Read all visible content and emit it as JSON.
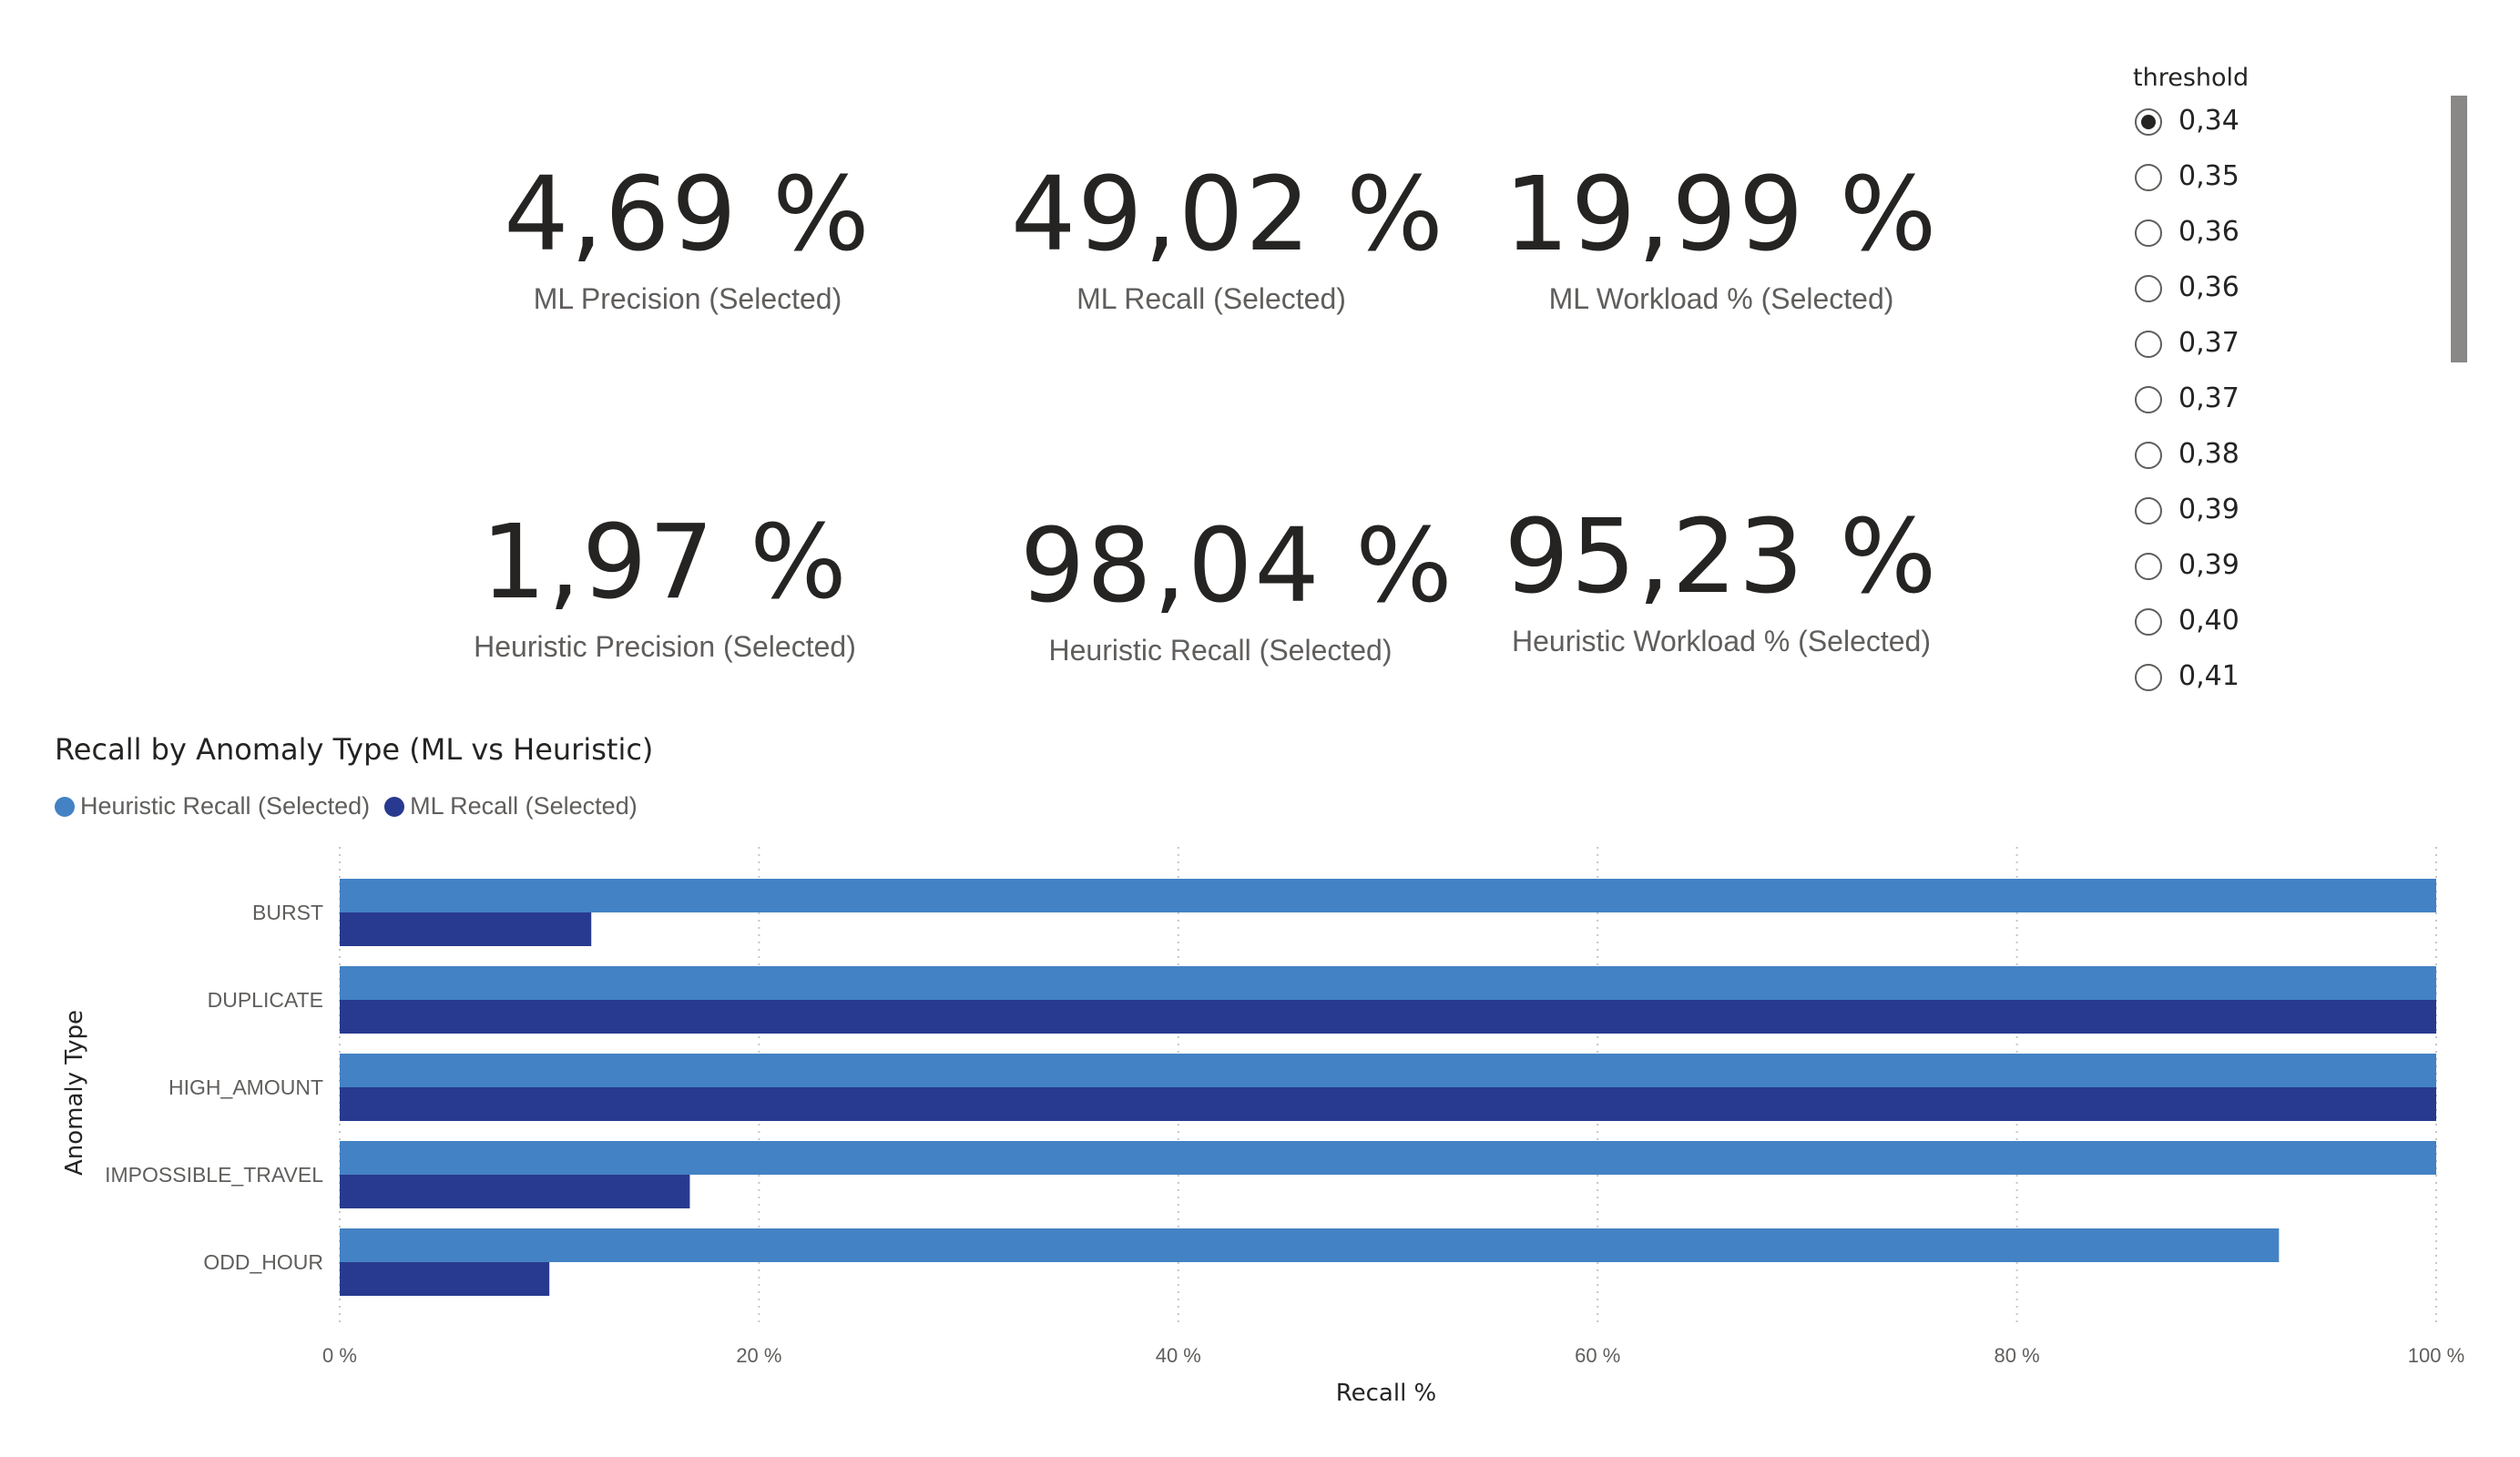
{
  "cards": [
    {
      "value": "4,69 %",
      "label": "ML Precision (Selected)"
    },
    {
      "value": "49,02 %",
      "label": "ML Recall (Selected)"
    },
    {
      "value": "19,99 %",
      "label": "ML Workload % (Selected)"
    },
    {
      "value": "1,97 %",
      "label": "Heuristic Precision (Selected)"
    },
    {
      "value": "98,04 %",
      "label": "Heuristic Recall (Selected)"
    },
    {
      "value": "95,23 %",
      "label": "Heuristic Workload % (Selected)"
    }
  ],
  "slicer": {
    "title": "threshold",
    "selected_index": 0,
    "options": [
      "0,34",
      "0,35",
      "0,36",
      "0,36",
      "0,37",
      "0,37",
      "0,38",
      "0,39",
      "0,39",
      "0,40",
      "0,41"
    ]
  },
  "chart_data": {
    "type": "bar",
    "orientation": "horizontal",
    "title": "Recall by Anomaly Type (ML vs Heuristic)",
    "xlabel": "Recall %",
    "ylabel": "Anomaly Type",
    "categories": [
      "BURST",
      "DUPLICATE",
      "HIGH_AMOUNT",
      "IMPOSSIBLE_TRAVEL",
      "ODD_HOUR"
    ],
    "series": [
      {
        "name": "Heuristic Recall (Selected)",
        "color": "#4382c4",
        "values": [
          100,
          100,
          100,
          100,
          92.5
        ]
      },
      {
        "name": "ML Recall (Selected)",
        "color": "#283a8f",
        "values": [
          12,
          100,
          100,
          16.7,
          10
        ]
      }
    ],
    "xlim": [
      0,
      100
    ],
    "xticks": [
      0,
      20,
      40,
      60,
      80,
      100
    ],
    "xtick_labels": [
      "0 %",
      "20 %",
      "40 %",
      "60 %",
      "80 %",
      "100 %"
    ],
    "grid": "vertical-dotted",
    "legend": "top-left"
  }
}
